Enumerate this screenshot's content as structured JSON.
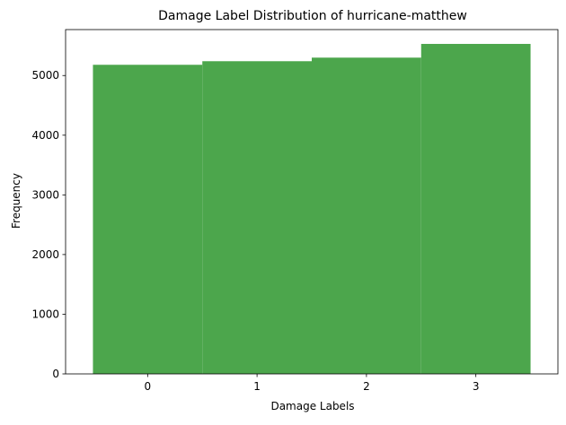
{
  "chart_data": {
    "type": "bar",
    "title": "Damage Label Distribution of hurricane-matthew",
    "xlabel": "Damage Labels",
    "ylabel": "Frequency",
    "categories": [
      "0",
      "1",
      "2",
      "3"
    ],
    "values": [
      5180,
      5240,
      5300,
      5530
    ],
    "ylim": [
      0,
      5770
    ],
    "yticks": [
      0,
      1000,
      2000,
      3000,
      4000,
      5000
    ],
    "bar_color": "#4ca64c",
    "grid": false,
    "legend": "none"
  }
}
